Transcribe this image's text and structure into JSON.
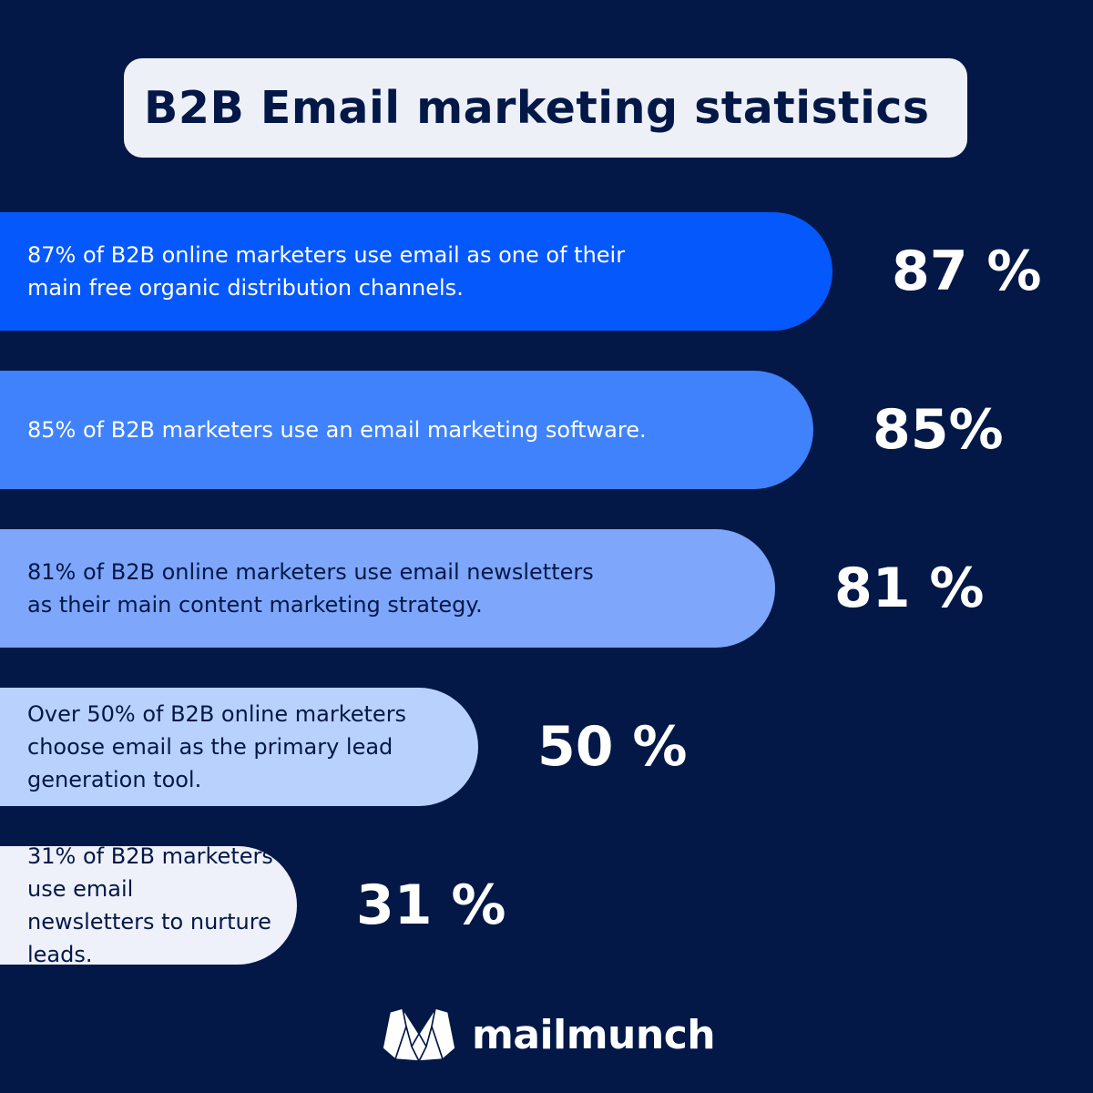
{
  "title": "B2B Email marketing statistics",
  "chart_data": {
    "type": "bar",
    "orientation": "horizontal",
    "title": "B2B Email marketing statistics",
    "categories": [
      "87% of B2B online marketers use email as one of their\nmain free organic distribution channels.",
      "85% of B2B marketers use an email marketing software.",
      "81% of B2B online marketers use email newsletters\nas their main content marketing strategy.",
      "Over 50% of B2B online marketers\nchoose email as the primary lead\ngeneration tool.",
      "31% of B2B marketers use email\nnewsletters to nurture leads."
    ],
    "values": [
      87,
      85,
      81,
      50,
      31
    ],
    "value_labels": [
      "87 %",
      "85%",
      "81 %",
      "50 %",
      "31 %"
    ],
    "unit": "%",
    "bar_colors": [
      "#0558fc",
      "#3f82fb",
      "#7ea7fb",
      "#b9d1fd",
      "#eef1fa"
    ],
    "text_colors": [
      "#ffffff",
      "#ffffff",
      "#031847",
      "#031847",
      "#031847"
    ],
    "grid": false
  },
  "brand": {
    "name": "mailmunch",
    "icon": "mailmunch-logo-icon"
  },
  "colors": {
    "background": "#031847",
    "title_box": "#eef0f7",
    "title_text": "#031847",
    "value_text": "#ffffff"
  }
}
